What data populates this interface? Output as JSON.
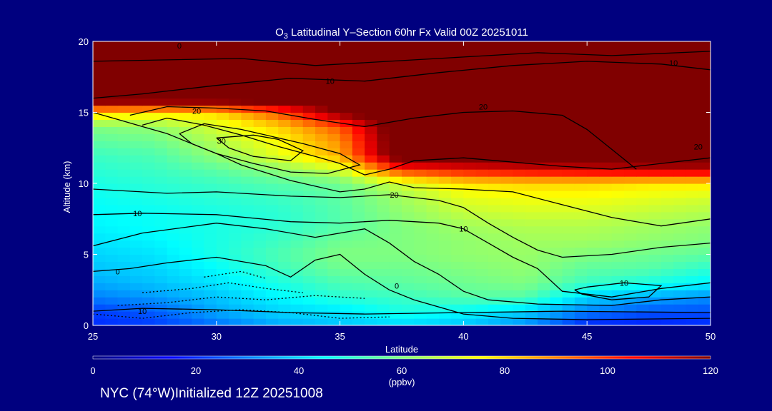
{
  "chart_data": {
    "type": "heatmap",
    "title_prefix": "O",
    "title_sub": "3",
    "title_rest": " Latitudinal Y–Section 60hr  Fx Valid 00Z 20251011",
    "xlabel": "Latitude",
    "ylabel": "Altitude (km)",
    "xlim": [
      25,
      50
    ],
    "ylim": [
      0,
      20
    ],
    "x_ticks": [
      25,
      30,
      35,
      40,
      45,
      50
    ],
    "y_ticks": [
      0,
      5,
      10,
      15,
      20
    ],
    "colorbar": {
      "range": [
        0,
        120
      ],
      "ticks": [
        0,
        20,
        40,
        60,
        80,
        100,
        120
      ],
      "unit_label": "(ppbv)",
      "colormap": "jet"
    },
    "background_field": {
      "lat": [
        25,
        27.5,
        30,
        32.5,
        35,
        37.5,
        40,
        42.5,
        45,
        47.5,
        50
      ],
      "alt": [
        0,
        1,
        2,
        3,
        4,
        5,
        6,
        7,
        8,
        9,
        10,
        11,
        12,
        13,
        14,
        15,
        16,
        17,
        18,
        19,
        20
      ],
      "ozone_ppbv": [
        [
          20,
          22,
          28,
          35,
          38,
          40,
          38,
          32,
          18,
          18,
          20
        ],
        [
          22,
          26,
          35,
          40,
          42,
          48,
          45,
          40,
          30,
          25,
          24
        ],
        [
          30,
          33,
          38,
          44,
          50,
          52,
          55,
          55,
          40,
          35,
          32
        ],
        [
          35,
          38,
          42,
          48,
          54,
          56,
          58,
          60,
          52,
          48,
          44
        ],
        [
          38,
          40,
          45,
          52,
          58,
          58,
          60,
          62,
          56,
          55,
          50
        ],
        [
          40,
          42,
          48,
          54,
          60,
          60,
          62,
          63,
          60,
          58,
          56
        ],
        [
          42,
          44,
          48,
          52,
          58,
          60,
          62,
          64,
          64,
          62,
          60
        ],
        [
          44,
          46,
          48,
          50,
          55,
          60,
          64,
          66,
          66,
          64,
          62
        ],
        [
          45,
          46,
          48,
          50,
          55,
          62,
          68,
          70,
          70,
          68,
          66
        ],
        [
          46,
          48,
          50,
          52,
          56,
          64,
          72,
          74,
          74,
          72,
          70
        ],
        [
          48,
          50,
          52,
          55,
          58,
          70,
          78,
          80,
          80,
          78,
          78
        ],
        [
          50,
          52,
          56,
          62,
          70,
          100,
          105,
          108,
          110,
          112,
          112
        ],
        [
          52,
          54,
          62,
          72,
          85,
          130,
          130,
          130,
          130,
          130,
          130
        ],
        [
          56,
          58,
          66,
          75,
          88,
          130,
          130,
          130,
          130,
          130,
          130
        ],
        [
          60,
          62,
          70,
          80,
          95,
          130,
          130,
          130,
          130,
          130,
          130
        ],
        [
          80,
          78,
          80,
          95,
          120,
          130,
          130,
          130,
          130,
          130,
          130
        ],
        [
          130,
          130,
          130,
          130,
          130,
          130,
          130,
          130,
          130,
          130,
          130
        ],
        [
          130,
          130,
          130,
          130,
          130,
          130,
          130,
          130,
          130,
          130,
          130
        ],
        [
          130,
          130,
          130,
          130,
          130,
          130,
          130,
          130,
          130,
          130,
          130
        ],
        [
          130,
          130,
          130,
          130,
          130,
          130,
          130,
          130,
          130,
          130,
          130
        ],
        [
          130,
          130,
          130,
          130,
          130,
          130,
          130,
          130,
          130,
          130,
          130
        ]
      ]
    },
    "contours": [
      {
        "style": "solid",
        "points": [
          [
            25,
            1.0
          ],
          [
            27,
            1.2
          ],
          [
            30,
            1.1
          ],
          [
            33,
            0.9
          ],
          [
            36,
            0.8
          ],
          [
            40,
            0.9
          ],
          [
            44,
            1.0
          ],
          [
            50,
            0.9
          ]
        ]
      },
      {
        "style": "solid",
        "points": [
          [
            25,
            3.8
          ],
          [
            26.5,
            4.0
          ],
          [
            28,
            4.4
          ],
          [
            30,
            4.8
          ],
          [
            32,
            4.2
          ],
          [
            33,
            3.4
          ],
          [
            34,
            4.6
          ],
          [
            35,
            5.0
          ],
          [
            36,
            3.6
          ],
          [
            37,
            2.5
          ],
          [
            38,
            1.8
          ],
          [
            40,
            0.8
          ],
          [
            42,
            0.5
          ],
          [
            45,
            0.4
          ],
          [
            50,
            0.5
          ]
        ]
      },
      {
        "style": "solid",
        "points": [
          [
            25,
            5.6
          ],
          [
            27,
            6.5
          ],
          [
            30,
            7.2
          ],
          [
            32,
            6.8
          ],
          [
            34,
            6.2
          ],
          [
            36,
            6.8
          ],
          [
            37,
            5.8
          ],
          [
            38,
            4.5
          ],
          [
            39,
            3.6
          ],
          [
            40,
            2.4
          ],
          [
            41,
            1.8
          ],
          [
            43,
            1.5
          ],
          [
            46,
            1.4
          ],
          [
            48,
            1.8
          ],
          [
            50,
            2.0
          ]
        ]
      },
      {
        "style": "solid",
        "points": [
          [
            25,
            7.8
          ],
          [
            27,
            7.9
          ],
          [
            30,
            7.8
          ],
          [
            33,
            7.3
          ],
          [
            35,
            7.2
          ],
          [
            37,
            7.4
          ],
          [
            39,
            7.2
          ],
          [
            40,
            6.8
          ],
          [
            41,
            5.8
          ],
          [
            42,
            4.8
          ],
          [
            43,
            4.0
          ],
          [
            44,
            2.4
          ],
          [
            46,
            2.0
          ],
          [
            48,
            2.6
          ],
          [
            50,
            3.0
          ]
        ]
      },
      {
        "style": "solid",
        "points": [
          [
            44.5,
            2.5
          ],
          [
            45,
            2.7
          ],
          [
            46.5,
            3.0
          ],
          [
            48,
            2.8
          ],
          [
            47.5,
            2.0
          ],
          [
            46,
            1.8
          ],
          [
            44.8,
            2.2
          ],
          [
            44.5,
            2.5
          ]
        ]
      },
      {
        "style": "solid",
        "points": [
          [
            25,
            9.6
          ],
          [
            28,
            9.3
          ],
          [
            30,
            9.4
          ],
          [
            33,
            9.1
          ],
          [
            35,
            9.0
          ],
          [
            37,
            9.2
          ],
          [
            39,
            8.8
          ],
          [
            40,
            8.3
          ],
          [
            41,
            7.2
          ],
          [
            42,
            6.2
          ],
          [
            43,
            5.3
          ],
          [
            44,
            4.8
          ],
          [
            46,
            5.0
          ],
          [
            48,
            5.5
          ],
          [
            50,
            5.8
          ]
        ]
      },
      {
        "style": "solid",
        "points": [
          [
            25,
            15.0
          ],
          [
            26,
            14.5
          ],
          [
            27,
            14.0
          ],
          [
            28,
            13.5
          ],
          [
            29,
            12.8
          ],
          [
            30,
            12.1
          ],
          [
            31,
            11.3
          ],
          [
            33,
            10.2
          ],
          [
            35,
            9.4
          ],
          [
            36,
            9.6
          ],
          [
            37,
            10.1
          ],
          [
            38,
            9.7
          ],
          [
            40,
            9.6
          ],
          [
            42,
            9.4
          ],
          [
            44,
            8.5
          ],
          [
            46,
            7.6
          ],
          [
            48,
            7.0
          ],
          [
            50,
            7.5
          ]
        ]
      },
      {
        "style": "solid",
        "points": [
          [
            27,
            14.1
          ],
          [
            28,
            14.6
          ],
          [
            29.5,
            14.1
          ],
          [
            31,
            13.4
          ],
          [
            32.5,
            12.6
          ],
          [
            34,
            11.9
          ],
          [
            35,
            11.4
          ],
          [
            36,
            10.6
          ],
          [
            37,
            11.0
          ],
          [
            38,
            11.6
          ],
          [
            40,
            11.8
          ],
          [
            42,
            11.5
          ],
          [
            44,
            11.2
          ],
          [
            46,
            11.0
          ],
          [
            48,
            11.4
          ],
          [
            50,
            11.8
          ]
        ]
      },
      {
        "style": "solid",
        "points": [
          [
            28.5,
            13.5
          ],
          [
            29.5,
            14.2
          ],
          [
            31,
            13.8
          ],
          [
            32,
            13.4
          ],
          [
            33.5,
            12.8
          ],
          [
            35,
            12.1
          ],
          [
            35.8,
            11.3
          ],
          [
            34.5,
            10.7
          ],
          [
            33,
            10.8
          ],
          [
            31.5,
            11.4
          ],
          [
            30,
            12.1
          ],
          [
            29,
            12.8
          ],
          [
            28.5,
            13.5
          ]
        ]
      },
      {
        "style": "solid",
        "points": [
          [
            30,
            13.2
          ],
          [
            31.5,
            13.4
          ],
          [
            32.5,
            13.1
          ],
          [
            33.5,
            12.3
          ],
          [
            33,
            11.6
          ],
          [
            31.5,
            11.9
          ],
          [
            30.5,
            12.5
          ],
          [
            30,
            13.2
          ]
        ]
      },
      {
        "style": "solid",
        "points": [
          [
            26.5,
            14.8
          ],
          [
            28,
            15.4
          ],
          [
            30,
            15.3
          ],
          [
            32,
            15.1
          ],
          [
            34,
            14.5
          ],
          [
            36,
            14.0
          ],
          [
            38,
            14.6
          ],
          [
            40,
            15.0
          ],
          [
            42,
            15.1
          ],
          [
            44,
            14.8
          ],
          [
            45,
            13.8
          ],
          [
            46,
            12.4
          ],
          [
            47,
            11.0
          ]
        ]
      },
      {
        "style": "solid",
        "points": [
          [
            25,
            16.0
          ],
          [
            27,
            16.3
          ],
          [
            30,
            16.9
          ],
          [
            33,
            17.4
          ],
          [
            36,
            17.2
          ],
          [
            39,
            17.8
          ],
          [
            42,
            18.3
          ],
          [
            45,
            18.6
          ],
          [
            48,
            18.4
          ],
          [
            50,
            18.0
          ]
        ]
      },
      {
        "style": "solid",
        "points": [
          [
            25,
            18.6
          ],
          [
            28,
            18.7
          ],
          [
            31,
            18.8
          ],
          [
            34,
            18.3
          ],
          [
            37,
            18.6
          ],
          [
            40,
            18.9
          ],
          [
            43,
            19.2
          ],
          [
            46,
            19.0
          ],
          [
            50,
            19.3
          ]
        ]
      },
      {
        "style": "dotted",
        "points": [
          [
            25,
            0.8
          ],
          [
            27,
            0.5
          ],
          [
            29,
            0.9
          ],
          [
            31,
            1.1
          ],
          [
            33,
            0.9
          ],
          [
            35,
            0.5
          ],
          [
            37,
            0.6
          ]
        ]
      },
      {
        "style": "dotted",
        "points": [
          [
            26,
            1.4
          ],
          [
            28,
            1.6
          ],
          [
            30,
            2.0
          ],
          [
            32,
            1.8
          ],
          [
            34,
            2.1
          ],
          [
            36,
            1.9
          ]
        ]
      },
      {
        "style": "dotted",
        "points": [
          [
            27,
            2.3
          ],
          [
            29,
            2.6
          ],
          [
            30.5,
            3.0
          ],
          [
            32,
            2.6
          ],
          [
            33.5,
            2.3
          ]
        ]
      },
      {
        "style": "dotted",
        "points": [
          [
            29.5,
            3.4
          ],
          [
            31,
            3.8
          ],
          [
            32,
            3.3
          ]
        ]
      }
    ],
    "contour_labels": [
      {
        "text": "0",
        "x": 28.5,
        "y": 19.7
      },
      {
        "text": "10",
        "x": 34.6,
        "y": 17.2
      },
      {
        "text": "10",
        "x": 48.5,
        "y": 18.5
      },
      {
        "text": "20",
        "x": 29.2,
        "y": 15.1
      },
      {
        "text": "20",
        "x": 40.8,
        "y": 15.4
      },
      {
        "text": "20",
        "x": 49.5,
        "y": 12.6
      },
      {
        "text": "30",
        "x": 30.2,
        "y": 13.0
      },
      {
        "text": "20",
        "x": 37.2,
        "y": 9.2
      },
      {
        "text": "10",
        "x": 26.8,
        "y": 7.9
      },
      {
        "text": "10",
        "x": 40.0,
        "y": 6.8
      },
      {
        "text": "0",
        "x": 26.0,
        "y": 3.8
      },
      {
        "text": "0",
        "x": 37.3,
        "y": 2.8
      },
      {
        "text": "10",
        "x": 46.5,
        "y": 3.0
      },
      {
        "text": "10",
        "x": 27.0,
        "y": 1.0
      }
    ]
  },
  "caption": "NYC (74°W)Initialized 12Z 20251008"
}
